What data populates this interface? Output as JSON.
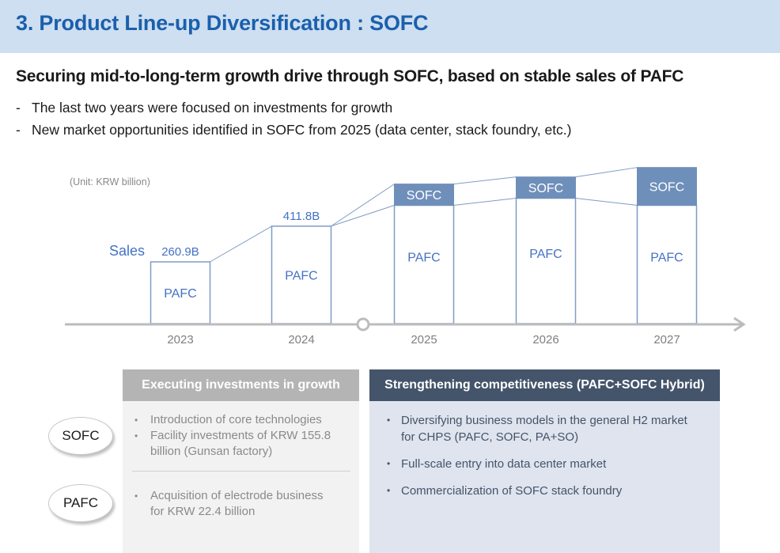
{
  "header": {
    "title": "3. Product Line-up Diversification : SOFC"
  },
  "headline": "Securing mid-to-long-term growth drive through SOFC, based on stable sales of PAFC",
  "bullets": [
    {
      "marker": "-",
      "text": "The last two years were focused on investments for growth"
    },
    {
      "marker": "-",
      "text": "New market opportunities identified in SOFC from 2025 (data center, stack foundry, etc.)"
    }
  ],
  "chart_data": {
    "type": "bar",
    "stacked": true,
    "title": "",
    "unit_note": "(Unit: KRW billion)",
    "series_label": "Sales",
    "categories": [
      "2023",
      "2024",
      "2025",
      "2026",
      "2027"
    ],
    "series": [
      {
        "name": "PAFC",
        "values": [
          260.9,
          411.8,
          500,
          530,
          500
        ]
      },
      {
        "name": "SOFC",
        "values": [
          0,
          0,
          90,
          90,
          160
        ]
      }
    ],
    "data_labels": [
      "260.9B",
      "411.8B",
      "",
      "",
      ""
    ],
    "timeline_marker_after": "2024",
    "ylim": [
      0,
      700
    ],
    "colors": {
      "pafc_fill": "#ffffff",
      "pafc_stroke": "#7f9cc4",
      "sofc_fill": "#6f8fbb",
      "label": "#4472c4",
      "axis": "#bcbcbc",
      "year_text": "#7f7f7f",
      "unit_text": "#8a8a8a"
    }
  },
  "panels": {
    "left": {
      "title": "Executing investments in growth",
      "sofc_items": [
        "Introduction of core technologies",
        "Facility investments of KRW 155.8 billion (Gunsan factory)"
      ],
      "pafc_items": [
        "Acquisition of electrode business for KRW 22.4 billion"
      ]
    },
    "right": {
      "title": "Strengthening competitiveness (PAFC+SOFC Hybrid)",
      "items": [
        "Diversifying business models in the general H2 market for CHPS (PAFC, SOFC, PA+SO)",
        "Full-scale entry into data center market",
        "Commercialization of SOFC stack foundry"
      ]
    },
    "ovals": {
      "sofc": "SOFC",
      "pafc": "PAFC"
    }
  },
  "bullet_glyph": "•"
}
